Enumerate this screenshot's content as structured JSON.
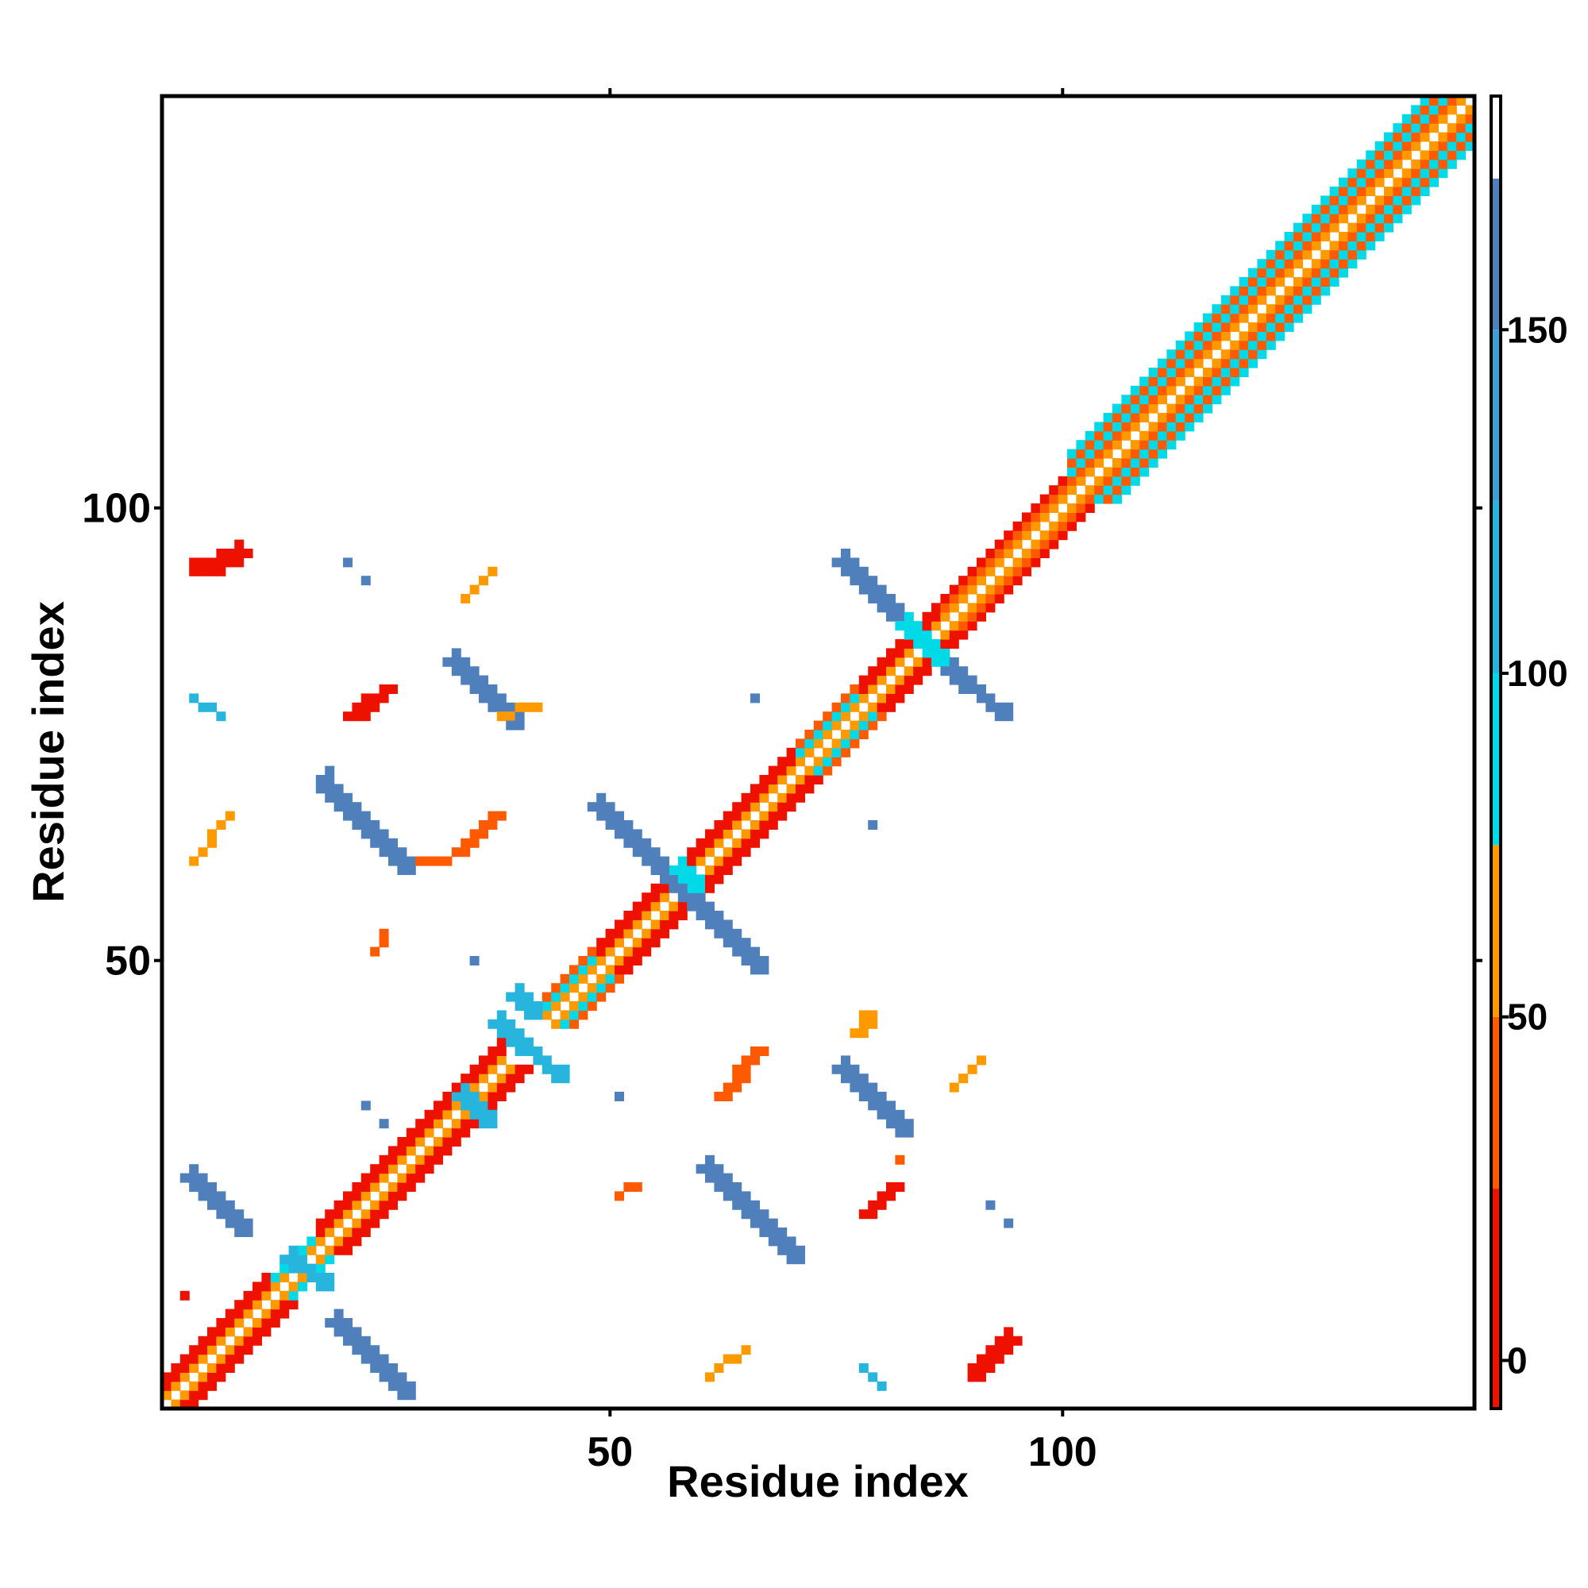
{
  "chart_data": {
    "type": "heatmap",
    "title": "",
    "xlabel": "Residue index",
    "ylabel": "Residue index",
    "xlim": [
      1,
      145
    ],
    "ylim": [
      1,
      145
    ],
    "x_ticks": [
      50,
      100
    ],
    "y_ticks": [
      50,
      100
    ],
    "grid": false,
    "legend": "colorbar-right",
    "colorbar": {
      "range": [
        -7,
        184
      ],
      "ticks": [
        0,
        50,
        100,
        150
      ],
      "stops": [
        {
          "from": -7,
          "to": 25,
          "color": "#ee1100"
        },
        {
          "from": 25,
          "to": 50,
          "color": "#ff5a00"
        },
        {
          "from": 50,
          "to": 75,
          "color": "#ff9900"
        },
        {
          "from": 75,
          "to": 100,
          "color": "#00d9e8"
        },
        {
          "from": 100,
          "to": 125,
          "color": "#27b4dd"
        },
        {
          "from": 125,
          "to": 150,
          "color": "#3f9fd4"
        },
        {
          "from": 150,
          "to": 172,
          "color": "#5080bb"
        },
        {
          "from": 172,
          "to": 184,
          "color": "#ffffff"
        }
      ]
    },
    "diagonal_band": [
      {
        "from": 1,
        "to": 12,
        "offsets": [
          {
            "d": 1,
            "v": 60
          },
          {
            "d": 2,
            "v": 10
          },
          {
            "d": 3,
            "v": 5
          }
        ]
      },
      {
        "from": 13,
        "to": 17,
        "offsets": [
          {
            "d": 1,
            "v": 60
          },
          {
            "d": 2,
            "v": 85
          }
        ]
      },
      {
        "from": 18,
        "to": 28,
        "offsets": [
          {
            "d": 1,
            "v": 60
          },
          {
            "d": 2,
            "v": 10
          },
          {
            "d": 3,
            "v": 5
          }
        ]
      },
      {
        "from": 29,
        "to": 38,
        "offsets": [
          {
            "d": 1,
            "v": 60
          },
          {
            "d": 2,
            "v": 10
          },
          {
            "d": 3,
            "v": 5
          }
        ]
      },
      {
        "from": 43,
        "to": 48,
        "offsets": [
          {
            "d": 1,
            "v": 60
          },
          {
            "d": 2,
            "v": 85
          },
          {
            "d": 3,
            "v": 40
          }
        ]
      },
      {
        "from": 49,
        "to": 59,
        "offsets": [
          {
            "d": 1,
            "v": 60
          },
          {
            "d": 2,
            "v": 10
          },
          {
            "d": 3,
            "v": 5
          }
        ]
      },
      {
        "from": 60,
        "to": 70,
        "offsets": [
          {
            "d": 1,
            "v": 60
          },
          {
            "d": 2,
            "v": 10
          },
          {
            "d": 3,
            "v": 5
          }
        ]
      },
      {
        "from": 71,
        "to": 77,
        "offsets": [
          {
            "d": 1,
            "v": 60
          },
          {
            "d": 2,
            "v": 85
          },
          {
            "d": 3,
            "v": 40
          }
        ]
      },
      {
        "from": 78,
        "to": 86,
        "offsets": [
          {
            "d": 1,
            "v": 60
          },
          {
            "d": 2,
            "v": 10
          },
          {
            "d": 3,
            "v": 5
          }
        ]
      },
      {
        "from": 87,
        "to": 100,
        "offsets": [
          {
            "d": 1,
            "v": 60
          },
          {
            "d": 2,
            "v": 40
          },
          {
            "d": 3,
            "v": 10
          }
        ]
      },
      {
        "from": 101,
        "to": 145,
        "offsets": [
          {
            "d": 1,
            "v": 60
          },
          {
            "d": 2,
            "v": 40
          },
          {
            "d": 3,
            "v": 85
          },
          {
            "d": 4,
            "v": 40
          },
          {
            "d": 5,
            "v": 85
          }
        ]
      }
    ],
    "segments": [
      {
        "x1": 19,
        "y1": 10,
        "x2": 27,
        "y2": 2,
        "v": 155,
        "w": 2
      },
      {
        "x1": 3,
        "y1": 26,
        "x2": 9,
        "y2": 20,
        "v": 155,
        "w": 2
      },
      {
        "x1": 14,
        "y1": 17,
        "x2": 18,
        "y2": 14,
        "v": 118,
        "w": 2
      },
      {
        "x1": 36,
        "y1": 32,
        "x2": 33,
        "y2": 35,
        "v": 105,
        "w": 2
      },
      {
        "x1": 37,
        "y1": 43,
        "x2": 44,
        "y2": 37,
        "v": 118,
        "w": 2
      },
      {
        "x1": 60,
        "y1": 27,
        "x2": 70,
        "y2": 17,
        "v": 150,
        "w": 3
      },
      {
        "x1": 75,
        "y1": 38,
        "x2": 82,
        "y2": 31,
        "v": 150,
        "w": 2
      },
      {
        "x1": 48,
        "y1": 67,
        "x2": 56,
        "y2": 59,
        "v": 150,
        "w": 2
      },
      {
        "x1": 57,
        "y1": 58,
        "x2": 66,
        "y2": 49,
        "v": 150,
        "w": 3
      },
      {
        "x1": 18,
        "y1": 70,
        "x2": 27,
        "y2": 60,
        "v": 150,
        "w": 3
      },
      {
        "x1": 32,
        "y1": 83,
        "x2": 39,
        "y2": 76,
        "v": 150,
        "w": 3
      },
      {
        "x1": 75,
        "y1": 94,
        "x2": 81,
        "y2": 88,
        "v": 150,
        "w": 2
      },
      {
        "x1": 86,
        "y1": 83,
        "x2": 93,
        "y2": 77,
        "v": 150,
        "w": 2
      },
      {
        "x1": 82,
        "y1": 87,
        "x2": 86,
        "y2": 83,
        "v": 95,
        "w": 2
      },
      {
        "x1": 57,
        "y1": 60,
        "x2": 59,
        "y2": 58,
        "v": 95,
        "w": 2
      },
      {
        "x1": 39,
        "y1": 46,
        "x2": 41,
        "y2": 44,
        "v": 120,
        "w": 3
      },
      {
        "x1": 3,
        "y1": 13,
        "x2": 3,
        "y2": 13,
        "v": 0,
        "w": 1
      },
      {
        "x1": 4,
        "y1": 93,
        "x2": 9,
        "y2": 95,
        "v": 8,
        "w": 3
      },
      {
        "x1": 21,
        "y1": 77,
        "x2": 25,
        "y2": 80,
        "v": 15,
        "w": 2
      },
      {
        "x1": 33,
        "y1": 62,
        "x2": 37,
        "y2": 66,
        "v": 25,
        "w": 2
      },
      {
        "x1": 29,
        "y1": 61,
        "x2": 32,
        "y2": 61,
        "v": 30,
        "w": 1
      },
      {
        "x1": 62,
        "y1": 35,
        "x2": 66,
        "y2": 40,
        "v": 25,
        "w": 2
      },
      {
        "x1": 78,
        "y1": 22,
        "x2": 81,
        "y2": 25,
        "v": 20,
        "w": 2
      },
      {
        "x1": 90,
        "y1": 4,
        "x2": 94,
        "y2": 8,
        "v": 8,
        "w": 3
      },
      {
        "x1": 4,
        "y1": 61,
        "x2": 8,
        "y2": 66,
        "v": 50,
        "w": 1
      },
      {
        "x1": 34,
        "y1": 90,
        "x2": 37,
        "y2": 93,
        "v": 50,
        "w": 1
      },
      {
        "x1": 38,
        "y1": 77,
        "x2": 42,
        "y2": 78,
        "v": 70,
        "w": 1
      },
      {
        "x1": 24,
        "y1": 51,
        "x2": 25,
        "y2": 53,
        "v": 40,
        "w": 1
      },
      {
        "x1": 51,
        "y1": 24,
        "x2": 53,
        "y2": 25,
        "v": 40,
        "w": 1
      },
      {
        "x1": 61,
        "y1": 4,
        "x2": 65,
        "y2": 7,
        "v": 50,
        "w": 1
      },
      {
        "x1": 88,
        "y1": 36,
        "x2": 91,
        "y2": 39,
        "v": 50,
        "w": 1
      },
      {
        "x1": 77,
        "y1": 42,
        "x2": 78,
        "y2": 44,
        "v": 70,
        "w": 2
      },
      {
        "x1": 4,
        "y1": 79,
        "x2": 7,
        "y2": 77,
        "v": 118,
        "w": 1
      },
      {
        "x1": 78,
        "y1": 5,
        "x2": 80,
        "y2": 3,
        "v": 118,
        "w": 1
      }
    ],
    "points": [
      {
        "x": 21,
        "y": 94,
        "v": 150
      },
      {
        "x": 23,
        "y": 92,
        "v": 150
      },
      {
        "x": 23,
        "y": 34,
        "v": 160
      },
      {
        "x": 25,
        "y": 32,
        "v": 150
      },
      {
        "x": 35,
        "y": 50,
        "v": 160
      },
      {
        "x": 51,
        "y": 35,
        "v": 150
      },
      {
        "x": 66,
        "y": 79,
        "v": 150
      },
      {
        "x": 79,
        "y": 65,
        "v": 150
      },
      {
        "x": 82,
        "y": 28,
        "v": 40
      },
      {
        "x": 92,
        "y": 23,
        "v": 150
      },
      {
        "x": 94,
        "y": 21,
        "v": 160
      }
    ]
  }
}
